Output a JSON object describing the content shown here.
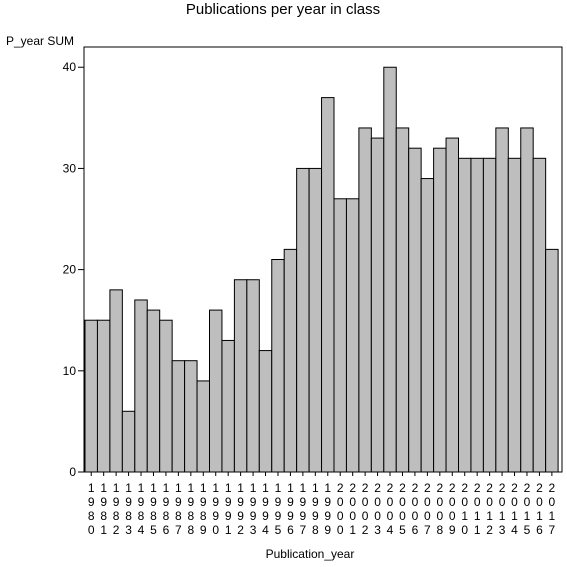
{
  "chart_data": {
    "type": "bar",
    "title": "Publications per year in class",
    "xlabel": "Publication_year",
    "ylabel": "P_year SUM",
    "ylim": [
      0,
      42
    ],
    "yticks": [
      0,
      10,
      20,
      30,
      40
    ],
    "grid": false,
    "legend": "none",
    "categories": [
      "1980",
      "1981",
      "1982",
      "1983",
      "1984",
      "1985",
      "1986",
      "1987",
      "1988",
      "1989",
      "1990",
      "1991",
      "1992",
      "1993",
      "1994",
      "1995",
      "1996",
      "1997",
      "1998",
      "1999",
      "2000",
      "2001",
      "2002",
      "2003",
      "2004",
      "2005",
      "2006",
      "2007",
      "2008",
      "2009",
      "2010",
      "2011",
      "2012",
      "2013",
      "2014",
      "2015",
      "2016",
      "2017"
    ],
    "values": [
      15,
      15,
      18,
      6,
      17,
      16,
      15,
      11,
      11,
      9,
      16,
      13,
      19,
      19,
      12,
      21,
      22,
      30,
      30,
      37,
      27,
      27,
      34,
      33,
      40,
      34,
      32,
      29,
      32,
      33,
      31,
      31,
      31,
      34,
      31,
      34,
      31,
      22
    ],
    "colors": {
      "bar_fill": "#bebebe",
      "bar_stroke": "#000000",
      "axis": "#000000"
    }
  }
}
